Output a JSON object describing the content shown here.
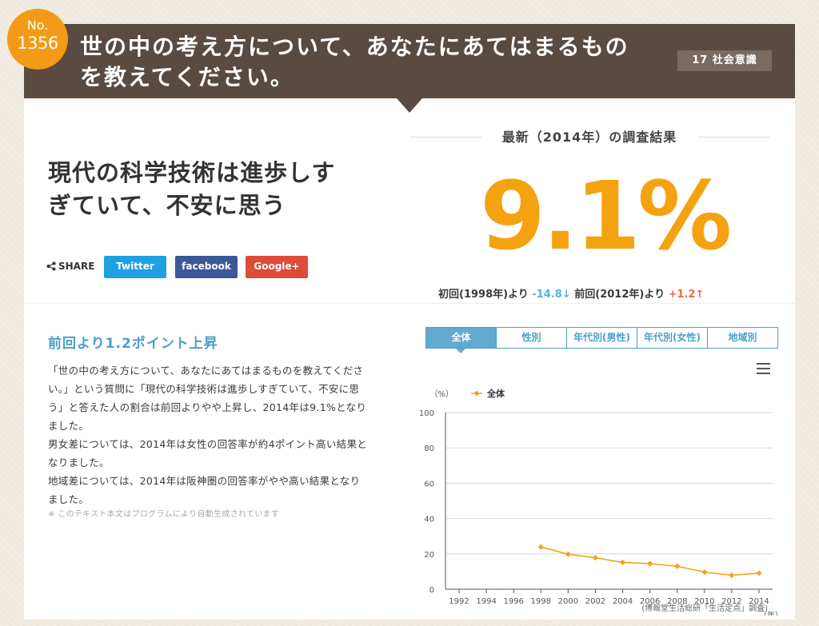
{
  "header": {
    "no_label": "No.",
    "no_number": "1356",
    "question_line1": "世の中の考え方について、あなたにあてはまるもの",
    "question_line2": "を教えてください。",
    "category": "17 社会意識"
  },
  "result": {
    "latest_label": "最新（2014年）の調査結果",
    "value": "9.1%",
    "first_label": "初回(1998年)より",
    "first_diff": "-14.8",
    "first_arrow": "↓",
    "prev_label": "前回(2012年)より",
    "prev_diff": "+1.2",
    "prev_arrow": "↑"
  },
  "answer": {
    "line1": "現代の科学技術は進歩しす",
    "line2": "ぎていて、不安に思う"
  },
  "share": {
    "label": "SHARE",
    "buttons": [
      {
        "label": "Twitter",
        "color": "#1da1e2"
      },
      {
        "label": "facebook",
        "color": "#3b5998"
      },
      {
        "label": "Google+",
        "color": "#dd4b39"
      }
    ]
  },
  "summary": {
    "headline": "前回より1.2ポイント上昇",
    "p1_line1": "「世の中の考え方について、あなたにあてはまるものを教えてくださ",
    "p1_line2": "い。」という質問に「現代の科学技術は進歩しすぎていて、不安に思",
    "p1_line3": "う」と答えた人の割合は前回よりやや上昇し、2014年は9.1%となり",
    "p1_line4": "ました。",
    "p2_line1": "男女差については、2014年は女性の回答率が約4ポイント高い結果と",
    "p2_line2": "なりました。",
    "p3_line1": "地域差については、2014年は阪神圏の回答率がやや高い結果となり",
    "p3_line2": "ました。",
    "note": "※ このテキスト本文はプログラムにより自動生成されています"
  },
  "tabs": [
    {
      "label": "全体",
      "active": true
    },
    {
      "label": "性別",
      "active": false
    },
    {
      "label": "年代別(男性)",
      "active": false
    },
    {
      "label": "年代別(女性)",
      "active": false
    },
    {
      "label": "地域別",
      "active": false
    }
  ],
  "chart_data": {
    "type": "line",
    "ylabel": "（%）",
    "xlabel": "（年）",
    "ylim": [
      0,
      100
    ],
    "yticks": [
      0,
      20,
      40,
      60,
      80,
      100
    ],
    "x": [
      1992,
      1994,
      1996,
      1998,
      2000,
      2002,
      2004,
      2006,
      2008,
      2010,
      2012,
      2014
    ],
    "legend_position": "top-left",
    "grid": true,
    "series": [
      {
        "name": "全体",
        "color": "#f5a210",
        "x": [
          1998,
          2000,
          2002,
          2004,
          2006,
          2008,
          2010,
          2012,
          2014
        ],
        "values": [
          23.9,
          19.8,
          17.8,
          15.2,
          14.5,
          13.0,
          9.7,
          7.9,
          9.1
        ]
      }
    ]
  },
  "credit": "(博報堂生活総研「生活定点」調査)",
  "colors": {
    "accent": "#f5a210",
    "header_bg": "#5b4a3f",
    "blue": "#4a9fc8",
    "down": "#55b4d5",
    "up": "#ee6a43"
  }
}
